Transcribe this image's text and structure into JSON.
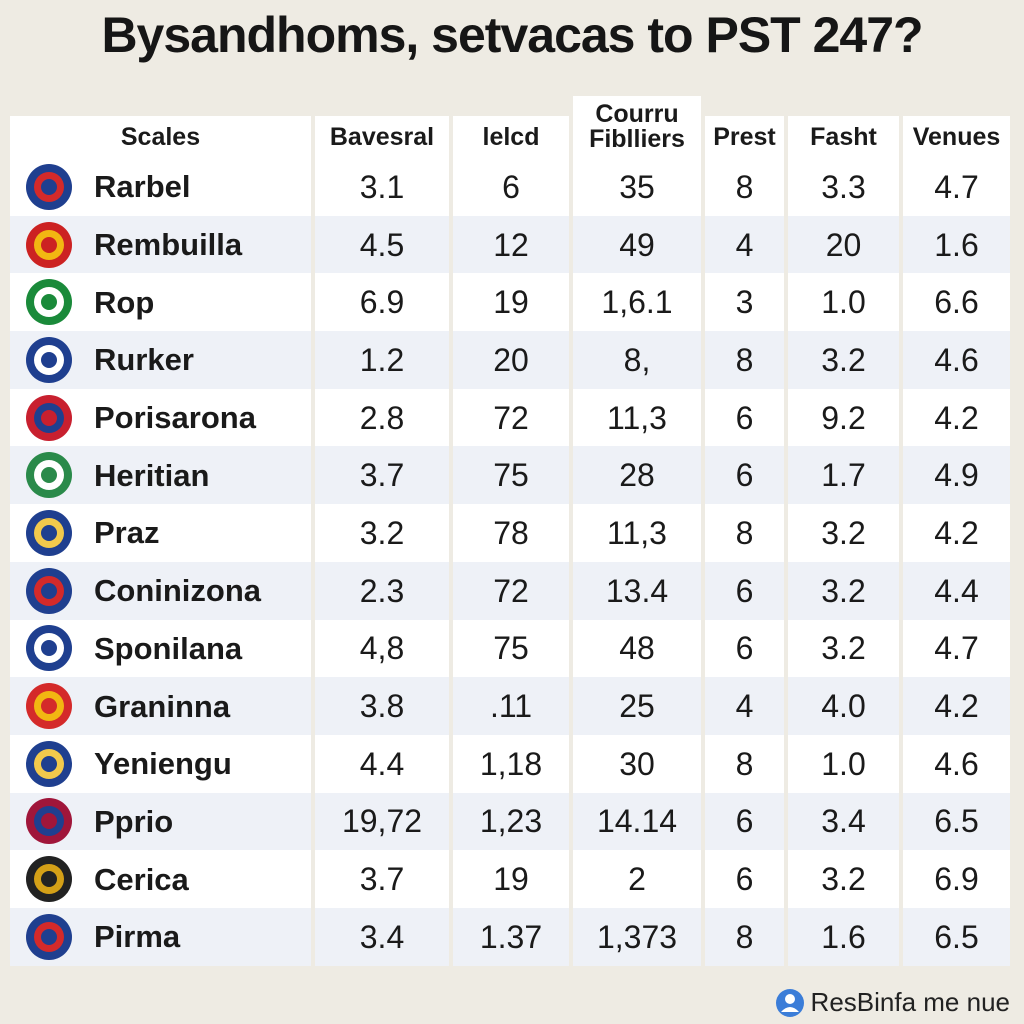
{
  "title": "Bysandhoms, setvacas to PST 247?",
  "table": {
    "headers": [
      "Scales",
      "Bavesral",
      "lelcd",
      "Courru\nFiblliers",
      "Prest",
      "Fasht",
      "Venues"
    ],
    "rows": [
      [
        "Rarbel",
        "3.1",
        "6",
        "35",
        "8",
        "3.3",
        "4.7"
      ],
      [
        "Rembuilla",
        "4.5",
        "12",
        "49",
        "4",
        "20",
        "1.6"
      ],
      [
        "Rop",
        "6.9",
        "19",
        "1,6.1",
        "3",
        "1.0",
        "6.6"
      ],
      [
        "Rurker",
        "1.2",
        "20",
        "8,",
        "8",
        "3.2",
        "4.6"
      ],
      [
        "Porisarona",
        "2.8",
        "72",
        "11,3",
        "6",
        "9.2",
        "4.2"
      ],
      [
        "Heritian",
        "3.7",
        "75",
        "28",
        "6",
        "1.7",
        "4.9"
      ],
      [
        "Praz",
        "3.2",
        "78",
        "11,3",
        "8",
        "3.2",
        "4.2"
      ],
      [
        "Coninizona",
        "2.3",
        "72",
        "13.4",
        "6",
        "3.2",
        "4.4"
      ],
      [
        "Sponilana",
        "4,8",
        "75",
        "48",
        "6",
        "3.2",
        "4.7"
      ],
      [
        "Graninna",
        "3.8",
        ".11",
        "25",
        "4",
        "4.0",
        "4.2"
      ],
      [
        "Yeniengu",
        "4.4",
        "1,18",
        "30",
        "8",
        "1.0",
        "4.6"
      ],
      [
        "Pprio",
        "19,72",
        "1,23",
        "14.14",
        "6",
        "3.4",
        "6.5"
      ],
      [
        "Cerica",
        "3.7",
        "19",
        "2",
        "6",
        "3.2",
        "6.9"
      ],
      [
        "Pirma",
        "3.4",
        "1.37",
        "1,373",
        "8",
        "1.6",
        "6.5"
      ]
    ]
  },
  "footer": "ResBinfa me nue"
}
